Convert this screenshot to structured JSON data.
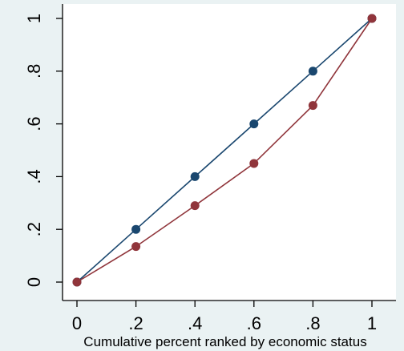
{
  "chart_data": {
    "type": "line",
    "title": "",
    "xlabel": "Cumulative percent ranked by economic status",
    "ylabel": "",
    "xlim": [
      0,
      1
    ],
    "ylim": [
      0,
      1
    ],
    "grid": false,
    "legend": "none",
    "x_ticks": [
      {
        "value": 0,
        "label": "0"
      },
      {
        "value": 0.2,
        "label": ".2"
      },
      {
        "value": 0.4,
        "label": ".4"
      },
      {
        "value": 0.6,
        "label": ".6"
      },
      {
        "value": 0.8,
        "label": ".8"
      },
      {
        "value": 1,
        "label": "1"
      }
    ],
    "y_ticks": [
      {
        "value": 0,
        "label": "0"
      },
      {
        "value": 0.2,
        "label": ".2"
      },
      {
        "value": 0.4,
        "label": ".4"
      },
      {
        "value": 0.6,
        "label": ".6"
      },
      {
        "value": 0.8,
        "label": ".8"
      },
      {
        "value": 1,
        "label": "1"
      }
    ],
    "series": [
      {
        "color": "#1a476f",
        "x": [
          0,
          0.2,
          0.4,
          0.6,
          0.8,
          1
        ],
        "y": [
          0,
          0.2,
          0.4,
          0.6,
          0.8,
          1
        ]
      },
      {
        "color": "#90353b",
        "x": [
          0,
          0.2,
          0.4,
          0.6,
          0.8,
          1
        ],
        "y": [
          0,
          0.135,
          0.29,
          0.45,
          0.67,
          1
        ]
      }
    ]
  },
  "colors": {
    "background": "#eaf2f3",
    "plot_background": "#ffffff",
    "axis": "#000000"
  }
}
